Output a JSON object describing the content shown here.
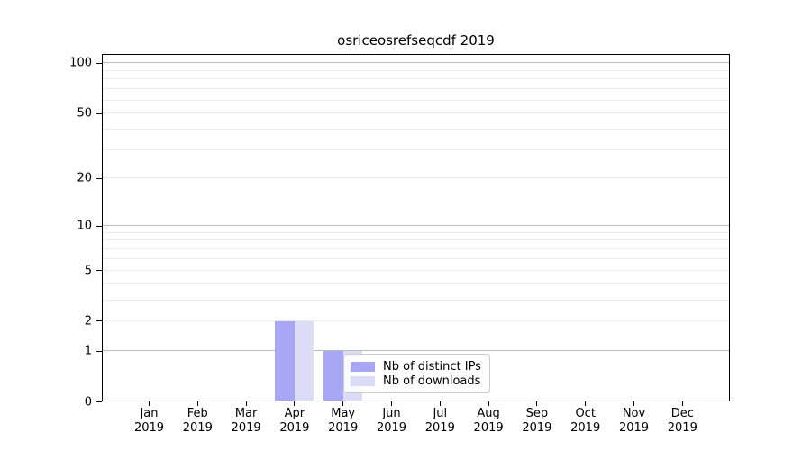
{
  "chart_data": {
    "type": "bar",
    "title": "osriceosrefseqcdf 2019",
    "categories": [
      "Jan",
      "Feb",
      "Mar",
      "Apr",
      "May",
      "Jun",
      "Jul",
      "Aug",
      "Sep",
      "Oct",
      "Nov",
      "Dec"
    ],
    "category_year": "2019",
    "series": [
      {
        "name": "Nb of distinct IPs",
        "color": "#a7a7f5",
        "values": [
          0,
          0,
          0,
          2,
          1,
          0,
          0,
          0,
          0,
          0,
          0,
          0
        ]
      },
      {
        "name": "Nb of downloads",
        "color": "#dcdcf8",
        "values": [
          0,
          0,
          0,
          2,
          1,
          0,
          0,
          0,
          0,
          0,
          0,
          0
        ]
      }
    ],
    "yscale": "log1p",
    "ylim": [
      0,
      113
    ],
    "yticks_labeled": [
      0,
      1,
      2,
      5,
      10,
      20,
      50,
      100
    ],
    "major_gridlines": [
      1,
      10,
      100
    ],
    "minor_gridlines": [
      2,
      3,
      4,
      5,
      6,
      7,
      8,
      9,
      20,
      30,
      40,
      50,
      60,
      70,
      80,
      90
    ],
    "grid": "horizontal",
    "legend": {
      "position": "lower-center",
      "items": [
        "Nb of distinct IPs",
        "Nb of downloads"
      ]
    },
    "colors": {
      "bar_distinct_ips": "#a7a7f5",
      "bar_downloads": "#dcdcf8",
      "major_grid": "#bbbbbb",
      "minor_grid": "#ebebeb",
      "spine": "#000000",
      "text": "#000000",
      "legend_border": "#cccccc"
    }
  }
}
